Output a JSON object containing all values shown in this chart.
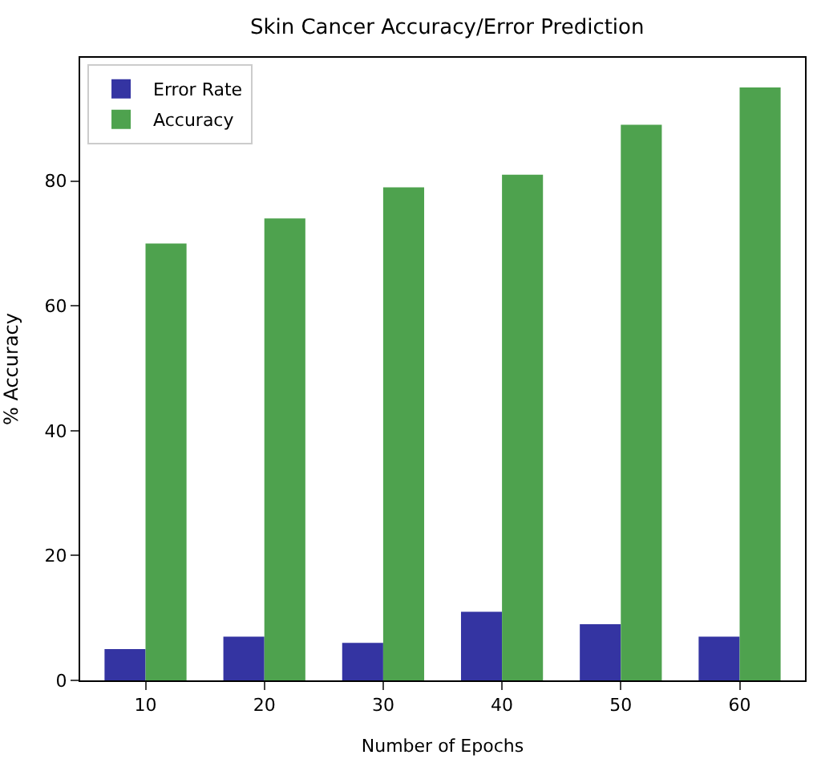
{
  "chart_data": {
    "type": "bar",
    "title": "Skin Cancer Accuracy/Error Prediction",
    "xlabel": "Number of Epochs",
    "ylabel": "% Accuracy",
    "categories": [
      "10",
      "20",
      "30",
      "40",
      "50",
      "60"
    ],
    "series": [
      {
        "name": "Error Rate",
        "color": "#3434a2",
        "values": [
          5,
          7,
          6,
          11,
          9,
          7
        ]
      },
      {
        "name": "Accuracy",
        "color": "#4ea24e",
        "values": [
          70,
          74,
          79,
          81,
          89,
          95
        ]
      }
    ],
    "ylim": [
      0,
      99.75
    ],
    "yticks": [
      0,
      20,
      40,
      60,
      80
    ],
    "legend": "top left"
  }
}
